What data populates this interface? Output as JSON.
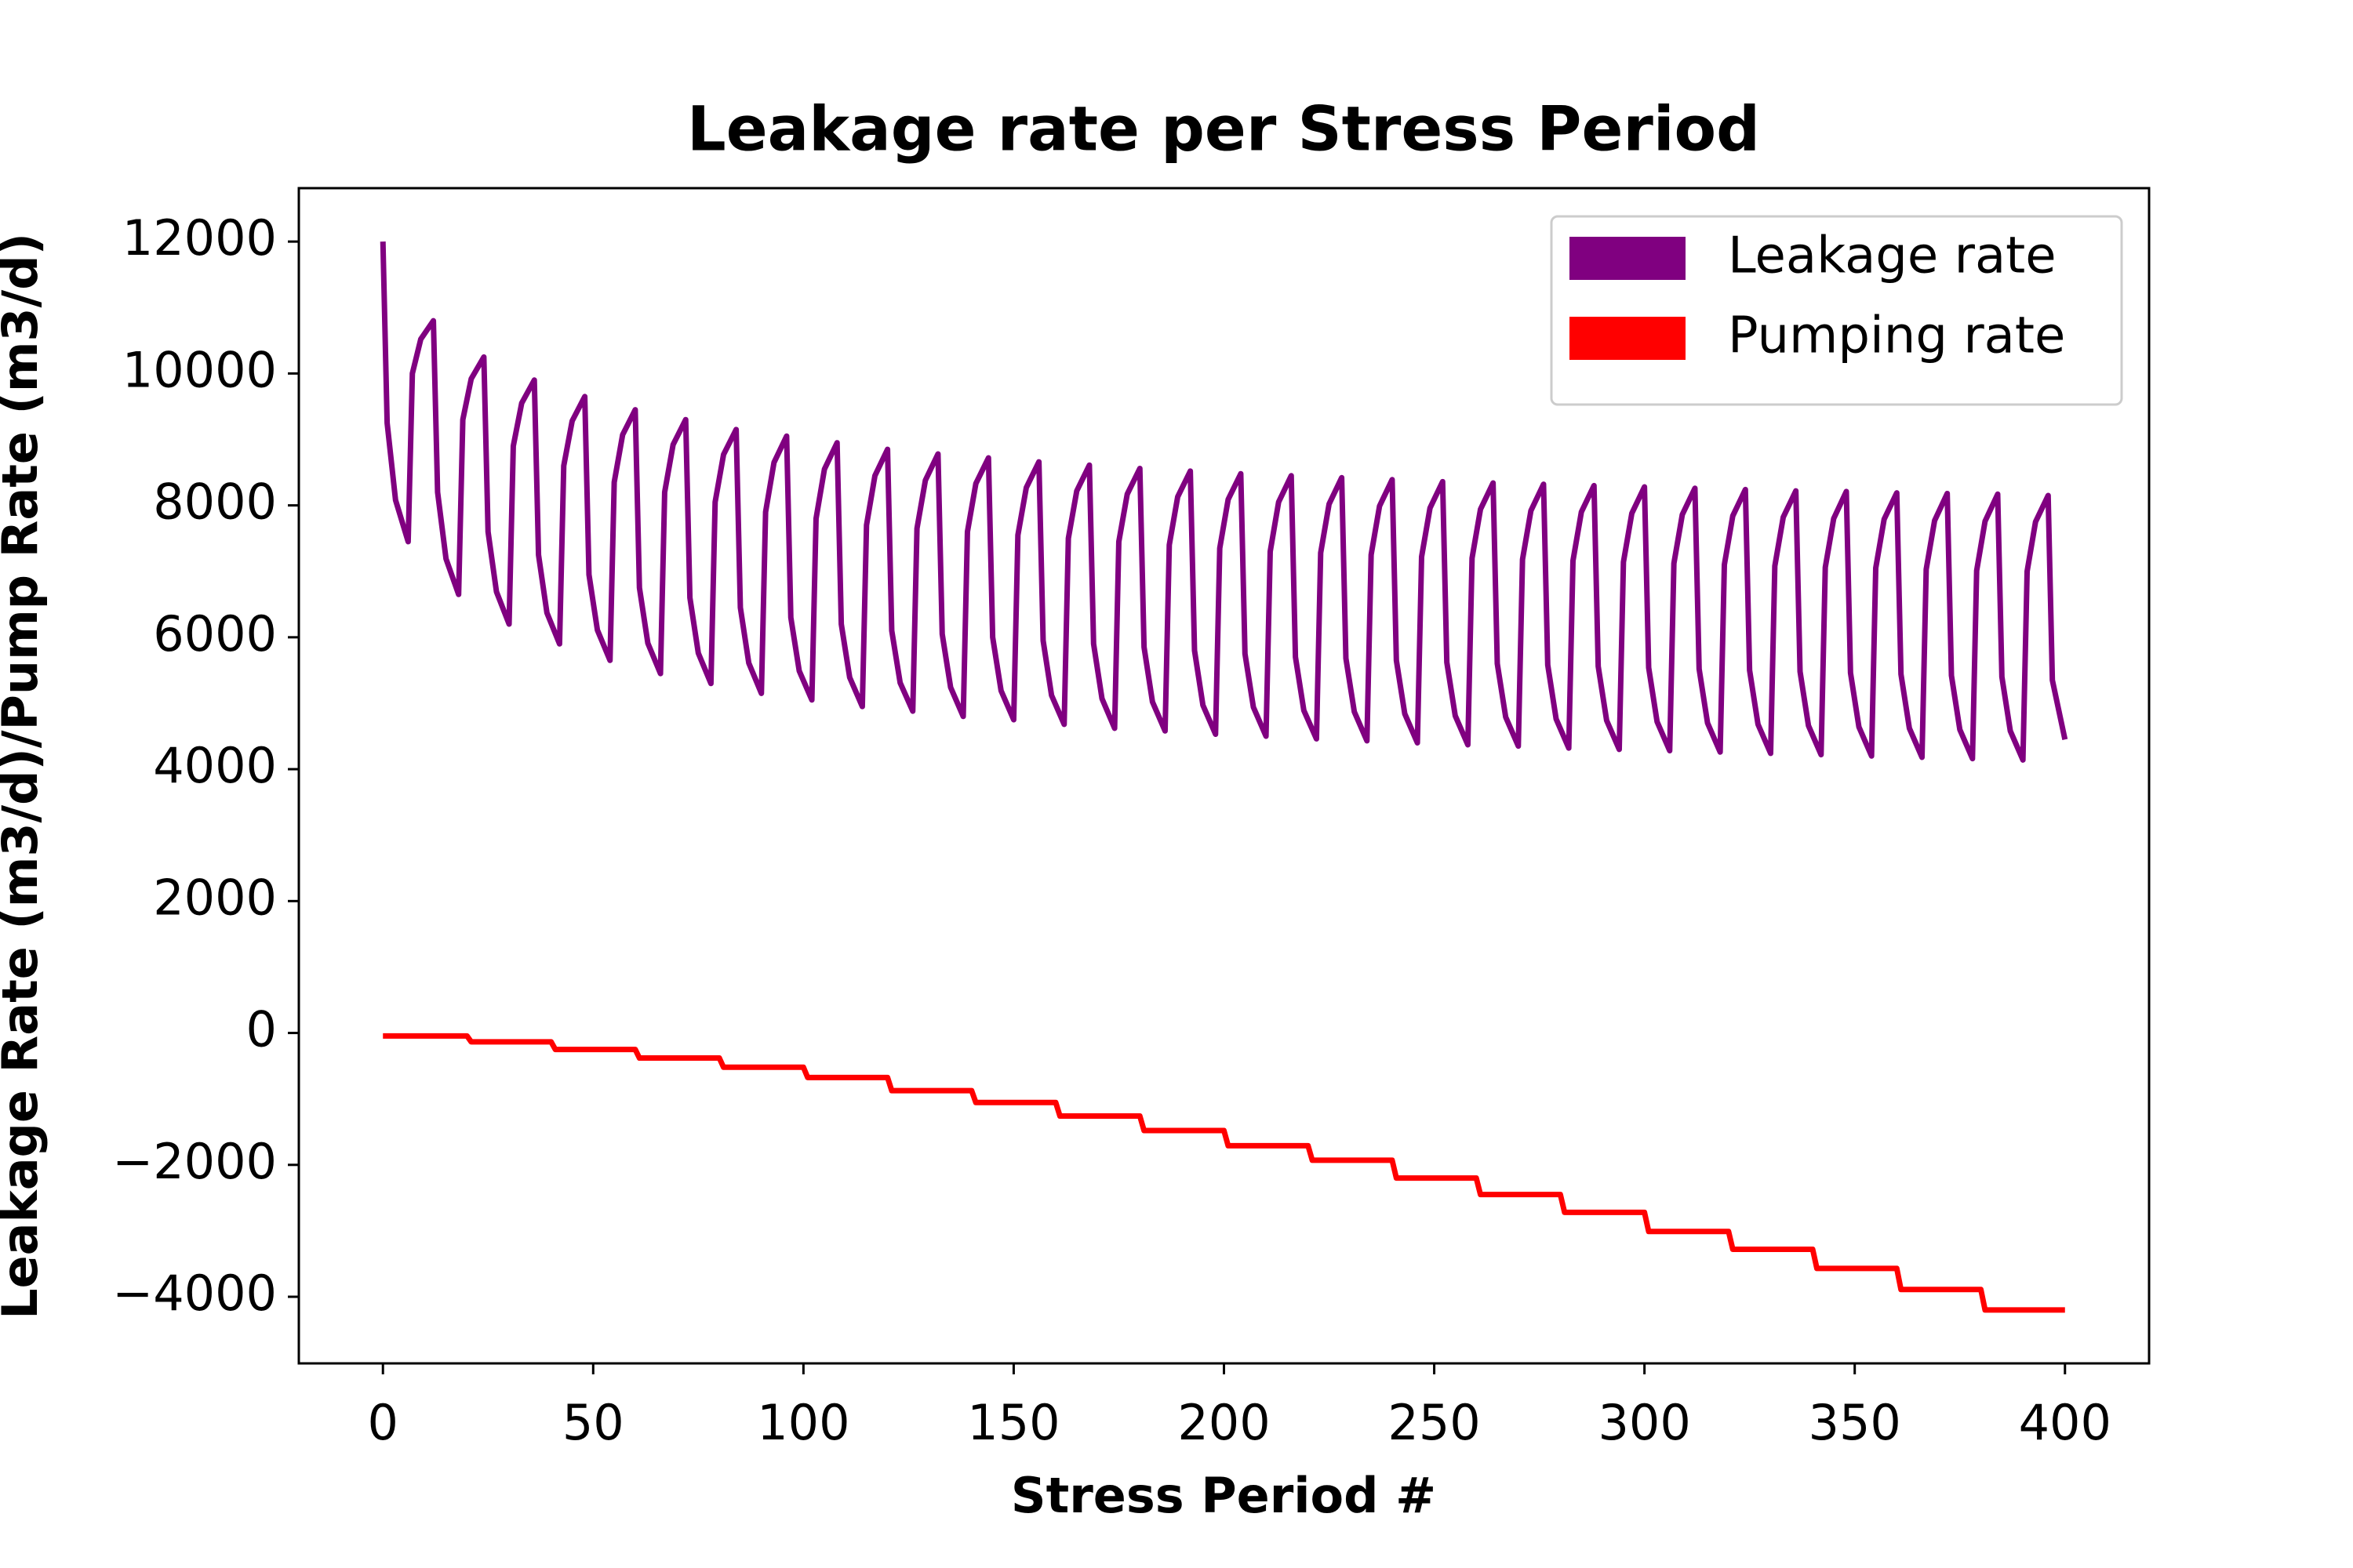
{
  "chart_data": {
    "type": "line",
    "title": "Leakage rate per Stress Period",
    "xlabel": "Stress Period #",
    "ylabel": "Leakage Rate (m3/d)/Pump Rate (m3/d)",
    "xlim": [
      -20,
      420
    ],
    "xticks": [
      0,
      50,
      100,
      150,
      200,
      250,
      300,
      350,
      400
    ],
    "ylim": [
      -5010,
      12810
    ],
    "yticks": [
      {
        "value": -4000,
        "label": "−4000"
      },
      {
        "value": -2000,
        "label": "−2000"
      },
      0,
      2000,
      4000,
      6000,
      8000,
      10000,
      12000
    ],
    "grid": false,
    "legend": "upper right",
    "series": [
      {
        "name": "Leakage rate",
        "color": "#800080",
        "x": [
          0,
          1,
          3,
          6,
          7,
          9,
          12,
          13,
          15,
          18,
          19,
          21,
          24,
          25,
          27,
          30,
          31,
          33,
          36,
          37,
          39,
          42,
          43,
          45,
          48,
          49,
          51,
          54,
          55,
          57,
          60,
          61,
          63,
          66,
          67,
          69,
          72,
          73,
          75,
          78,
          79,
          81,
          84,
          85,
          87,
          90,
          91,
          93,
          96,
          97,
          99,
          102,
          103,
          105,
          108,
          109,
          111,
          114,
          115,
          117,
          120,
          121,
          123,
          126,
          127,
          129,
          132,
          133,
          135,
          138,
          139,
          141,
          144,
          145,
          147,
          150,
          151,
          153,
          156,
          157,
          159,
          162,
          163,
          165,
          168,
          169,
          171,
          174,
          175,
          177,
          180,
          181,
          183,
          186,
          187,
          189,
          192,
          193,
          195,
          198,
          199,
          201,
          204,
          205,
          207,
          210,
          211,
          213,
          216,
          217,
          219,
          222,
          223,
          225,
          228,
          229,
          231,
          234,
          235,
          237,
          240,
          241,
          243,
          246,
          247,
          249,
          252,
          253,
          255,
          258,
          259,
          261,
          264,
          265,
          267,
          270,
          271,
          273,
          276,
          277,
          279,
          282,
          283,
          285,
          288,
          289,
          291,
          294,
          295,
          297,
          300,
          301,
          303,
          306,
          307,
          309,
          312,
          313,
          315,
          318,
          319,
          321,
          324,
          325,
          327,
          330,
          331,
          333,
          336,
          337,
          339,
          342,
          343,
          345,
          348,
          349,
          351,
          354,
          355,
          357,
          360,
          361,
          363,
          366,
          367,
          369,
          372,
          373,
          375,
          378,
          379,
          381,
          384,
          385,
          387,
          390,
          391,
          393,
          396,
          397,
          400
        ],
        "values": [
          12000,
          9250,
          8080,
          7450,
          10000,
          10520,
          10800,
          8200,
          7190,
          6650,
          9300,
          9920,
          10250,
          7600,
          6690,
          6200,
          8900,
          9550,
          9900,
          7250,
          6370,
          5900,
          8600,
          9280,
          9650,
          6950,
          6110,
          5650,
          8350,
          9070,
          9450,
          6750,
          5910,
          5450,
          8200,
          8920,
          9300,
          6600,
          5760,
          5300,
          8050,
          8770,
          9150,
          6450,
          5610,
          5150,
          7900,
          8650,
          9050,
          6300,
          5490,
          5050,
          7800,
          8550,
          8950,
          6200,
          5390,
          4950,
          7700,
          8450,
          8850,
          6100,
          5310,
          4880,
          7650,
          8380,
          8780,
          6050,
          5240,
          4800,
          7600,
          8330,
          8720,
          6000,
          5190,
          4750,
          7550,
          8270,
          8660,
          5950,
          5120,
          4680,
          7500,
          8220,
          8610,
          5900,
          5070,
          4620,
          7450,
          8170,
          8560,
          5850,
          5020,
          4580,
          7400,
          8130,
          8520,
          5800,
          4970,
          4530,
          7350,
          8090,
          8480,
          5750,
          4940,
          4500,
          7300,
          8050,
          8450,
          5700,
          4890,
          4460,
          7280,
          8020,
          8420,
          5680,
          4870,
          4430,
          7250,
          7990,
          8390,
          5650,
          4840,
          4400,
          7220,
          7960,
          8360,
          5620,
          4810,
          4370,
          7200,
          7940,
          8340,
          5600,
          4790,
          4350,
          7180,
          7920,
          8320,
          5580,
          4760,
          4320,
          7160,
          7900,
          8300,
          5560,
          4740,
          4300,
          7140,
          7880,
          8280,
          5540,
          4720,
          4280,
          7120,
          7860,
          8260,
          5520,
          4700,
          4260,
          7100,
          7840,
          8240,
          5500,
          4680,
          4240,
          7080,
          7820,
          8220,
          5480,
          4660,
          4220,
          7060,
          7800,
          8210,
          5460,
          4640,
          4200,
          7050,
          7790,
          8190,
          5440,
          4620,
          4180,
          7030,
          7770,
          8180,
          5420,
          4600,
          4160,
          7010,
          7760,
          8170,
          5400,
          4580,
          4140,
          7000,
          7750,
          8150,
          5350,
          4450
        ]
      },
      {
        "name": "Pumping rate",
        "color": "#ff0000",
        "x": [
          0,
          20,
          21,
          40,
          41,
          60,
          61,
          80,
          81,
          100,
          101,
          120,
          121,
          140,
          141,
          160,
          161,
          180,
          181,
          200,
          201,
          220,
          221,
          240,
          241,
          260,
          261,
          280,
          281,
          300,
          301,
          320,
          321,
          340,
          341,
          360,
          361,
          380,
          381,
          400
        ],
        "values": [
          -45,
          -45,
          -135,
          -135,
          -250,
          -250,
          -380,
          -380,
          -520,
          -520,
          -675,
          -675,
          -875,
          -875,
          -1055,
          -1055,
          -1260,
          -1260,
          -1480,
          -1480,
          -1710,
          -1710,
          -1930,
          -1930,
          -2200,
          -2200,
          -2450,
          -2450,
          -2720,
          -2720,
          -3010,
          -3010,
          -3280,
          -3280,
          -3570,
          -3570,
          -3890,
          -3890,
          -4200,
          -4200
        ]
      }
    ]
  }
}
